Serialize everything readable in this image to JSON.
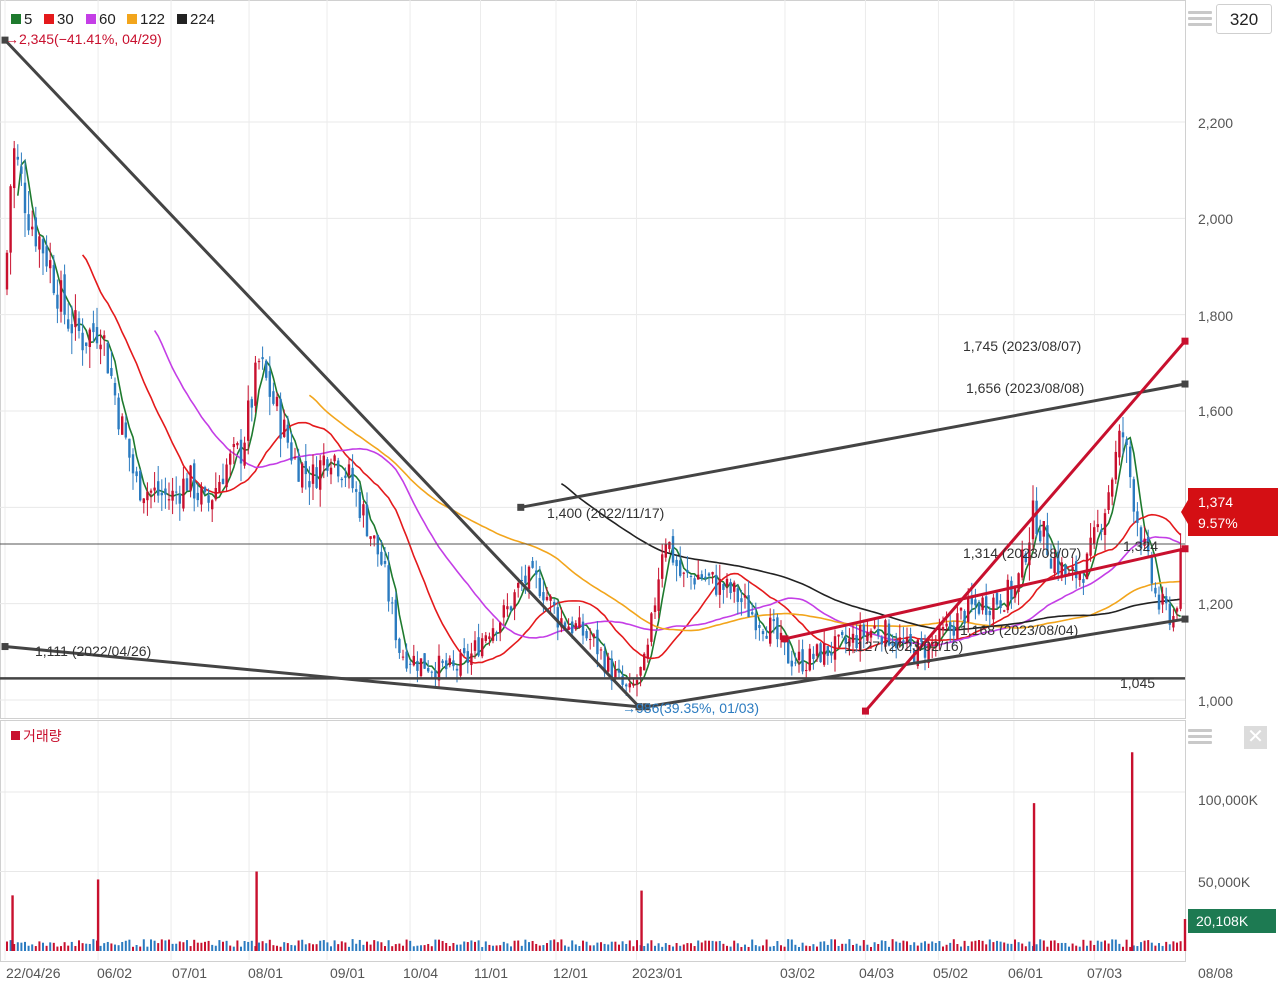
{
  "legend": {
    "items": [
      {
        "label": "5",
        "color": "#1e7a2e"
      },
      {
        "label": "30",
        "color": "#e41a1c"
      },
      {
        "label": "60",
        "color": "#c43ee6"
      },
      {
        "label": "122",
        "color": "#f2a51c"
      },
      {
        "label": "224",
        "color": "#222222"
      }
    ],
    "peak_note": "→2,345(−41.41%, 04/29)"
  },
  "controls": {
    "period_value": "320",
    "menu_icon": "hamburger-icon",
    "close_icon": "close-icon",
    "close_glyph": "✕"
  },
  "price_axis": {
    "ticks": [
      "2,200",
      "2,000",
      "1,800",
      "1,600",
      "1,200",
      "1,000"
    ],
    "current_price": "1,374",
    "current_change": "9.57%"
  },
  "volume_axis": {
    "ticks": [
      "100,000K",
      "50,000K"
    ],
    "current_volume": "20,108K",
    "label": "거래량"
  },
  "date_axis": {
    "ticks": [
      "22/04/26",
      "06/02",
      "07/01",
      "08/01",
      "09/01",
      "10/04",
      "11/01",
      "12/01",
      "2023/01",
      "03/02",
      "04/03",
      "05/02",
      "06/01",
      "07/03",
      "08/08"
    ]
  },
  "annotations": [
    {
      "text": "1,745 (2023/08/07)"
    },
    {
      "text": "1,656 (2023/08/08)"
    },
    {
      "text": "1,400 (2022/11/17)"
    },
    {
      "text": "1,314 (2023/08/07)"
    },
    {
      "text": "1,324"
    },
    {
      "text": "1,111 (2022/04/26)"
    },
    {
      "text": "1,168 (2023/08/04)"
    },
    {
      "text": "1,127 (2023/02/16)"
    },
    {
      "text": "1,045"
    },
    {
      "text": "→986(39.35%, 01/03)"
    }
  ],
  "colors": {
    "up": "#c8102e",
    "down": "#2b7bc0",
    "current_price_bg": "#d40f14",
    "current_volume_bg": "#1d7a52",
    "trendline_dark": "#444444",
    "trendline_red": "#c8102e"
  },
  "chart_data": {
    "type": "candlestick",
    "title": "",
    "x": {
      "start": "2022-04-26",
      "end": "2023-08-08",
      "tick_labels": [
        "22/04/26",
        "06/02",
        "07/01",
        "08/01",
        "09/01",
        "10/04",
        "11/01",
        "12/01",
        "2023/01",
        "03/02",
        "04/03",
        "05/02",
        "06/01",
        "07/03",
        "08/08"
      ]
    },
    "ylim": [
      950,
      2370
    ],
    "y_ticks": [
      1000,
      1200,
      1600,
      1800,
      2000,
      2200
    ],
    "grid": true,
    "close_series": [
      [
        "2022-04-26",
        1850
      ],
      [
        "2022-04-29",
        2150
      ],
      [
        "2022-05-06",
        2000
      ],
      [
        "2022-05-13",
        1920
      ],
      [
        "2022-05-20",
        1800
      ],
      [
        "2022-05-27",
        1750
      ],
      [
        "2022-06-03",
        1780
      ],
      [
        "2022-06-10",
        1600
      ],
      [
        "2022-06-17",
        1450
      ],
      [
        "2022-06-24",
        1430
      ],
      [
        "2022-07-01",
        1420
      ],
      [
        "2022-07-08",
        1460
      ],
      [
        "2022-07-15",
        1400
      ],
      [
        "2022-07-22",
        1480
      ],
      [
        "2022-07-29",
        1520
      ],
      [
        "2022-08-05",
        1700
      ],
      [
        "2022-08-12",
        1600
      ],
      [
        "2022-08-19",
        1500
      ],
      [
        "2022-08-26",
        1460
      ],
      [
        "2022-09-02",
        1520
      ],
      [
        "2022-09-09",
        1470
      ],
      [
        "2022-09-16",
        1380
      ],
      [
        "2022-09-23",
        1280
      ],
      [
        "2022-09-30",
        1100
      ],
      [
        "2022-10-07",
        1080
      ],
      [
        "2022-10-14",
        1070
      ],
      [
        "2022-10-21",
        1060
      ],
      [
        "2022-10-28",
        1090
      ],
      [
        "2022-11-04",
        1150
      ],
      [
        "2022-11-11",
        1180
      ],
      [
        "2022-11-18",
        1250
      ],
      [
        "2022-11-25",
        1240
      ],
      [
        "2022-12-02",
        1170
      ],
      [
        "2022-12-09",
        1150
      ],
      [
        "2022-12-16",
        1120
      ],
      [
        "2022-12-23",
        1060
      ],
      [
        "2022-12-30",
        1010
      ],
      [
        "2023-01-06",
        1080
      ],
      [
        "2023-01-13",
        1350
      ],
      [
        "2023-01-20",
        1250
      ],
      [
        "2023-01-27",
        1260
      ],
      [
        "2023-02-03",
        1240
      ],
      [
        "2023-02-10",
        1220
      ],
      [
        "2023-02-17",
        1180
      ],
      [
        "2023-02-24",
        1150
      ],
      [
        "2023-03-03",
        1090
      ],
      [
        "2023-03-10",
        1080
      ],
      [
        "2023-03-17",
        1100
      ],
      [
        "2023-03-24",
        1110
      ],
      [
        "2023-03-31",
        1130
      ],
      [
        "2023-04-07",
        1150
      ],
      [
        "2023-04-14",
        1130
      ],
      [
        "2023-04-21",
        1100
      ],
      [
        "2023-04-28",
        1110
      ],
      [
        "2023-05-05",
        1140
      ],
      [
        "2023-05-12",
        1180
      ],
      [
        "2023-05-19",
        1200
      ],
      [
        "2023-05-26",
        1210
      ],
      [
        "2023-06-02",
        1230
      ],
      [
        "2023-06-09",
        1390
      ],
      [
        "2023-06-16",
        1300
      ],
      [
        "2023-06-23",
        1250
      ],
      [
        "2023-06-30",
        1280
      ],
      [
        "2023-07-07",
        1400
      ],
      [
        "2023-07-14",
        1560
      ],
      [
        "2023-07-21",
        1350
      ],
      [
        "2023-07-28",
        1200
      ],
      [
        "2023-08-04",
        1170
      ],
      [
        "2023-08-08",
        1374
      ]
    ],
    "moving_averages": [
      {
        "name": "5"
      },
      {
        "name": "30"
      },
      {
        "name": "60"
      },
      {
        "name": "122"
      },
      {
        "name": "224"
      }
    ],
    "volume_series": [
      [
        "2022-04-29",
        35000
      ],
      [
        "2022-06-02",
        45000
      ],
      [
        "2022-08-04",
        50000
      ],
      [
        "2023-01-04",
        38000
      ],
      [
        "2023-06-09",
        93000
      ],
      [
        "2023-07-18",
        125000
      ],
      [
        "2023-08-08",
        20108
      ]
    ],
    "volume_ylim": [
      0,
      140000
    ],
    "volume_ticks": [
      50000,
      100000
    ],
    "trendlines": [
      {
        "from": [
          "2022-04-26",
          2370
        ],
        "to": [
          "2023-01-03",
          986
        ]
      },
      {
        "from": [
          "2022-04-26",
          1111
        ],
        "to": [
          "2023-01-03",
          986
        ]
      },
      {
        "from": [
          "2022-11-17",
          1400
        ],
        "to": [
          "2023-08-08",
          1656
        ]
      },
      {
        "from": [
          "2023-01-06",
          986
        ],
        "to": [
          "2023-08-08",
          1168
        ]
      },
      {
        "from": [
          "2023-03-02",
          1127
        ],
        "to": [
          "2023-08-08",
          1314
        ]
      },
      {
        "from": [
          "2023-04-03",
          977
        ],
        "to": [
          "2023-08-08",
          1745
        ]
      }
    ],
    "horizontal_lines": [
      1045,
      1324
    ]
  }
}
